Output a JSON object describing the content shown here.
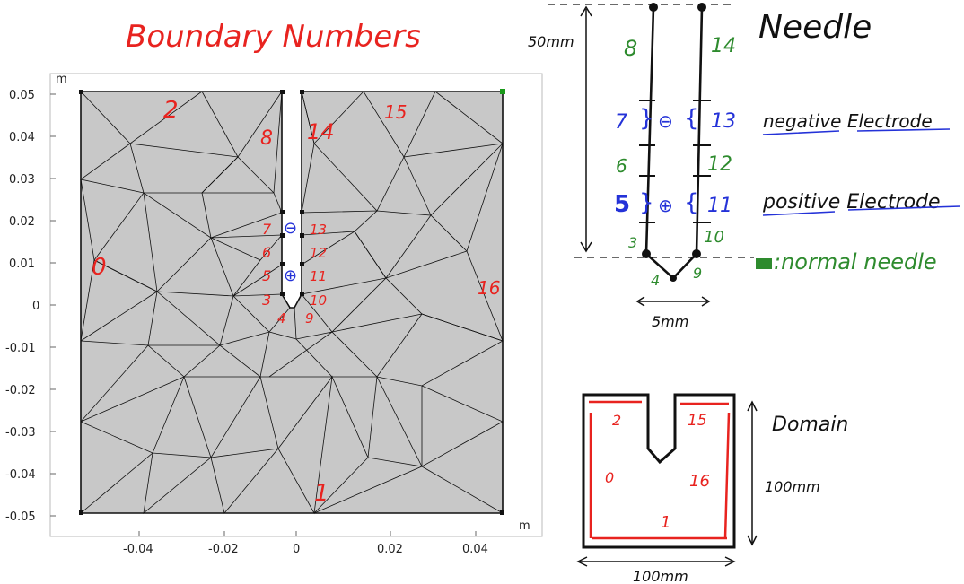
{
  "title": "Boundary Numbers",
  "plot": {
    "unit_x": "m",
    "unit_y": "m",
    "y_ticks": [
      "0.05",
      "0.04",
      "0.03",
      "0.02",
      "0.01",
      "0",
      "-0.01",
      "-0.02",
      "-0.03",
      "-0.04",
      "-0.05"
    ],
    "x_ticks": [
      "-0.04",
      "-0.02",
      "0",
      "0.02",
      "0.04"
    ],
    "boundary_labels": [
      "2",
      "8",
      "14",
      "15",
      "0",
      "16",
      "1",
      "7",
      "6",
      "5",
      "3",
      "4",
      "9",
      "10",
      "11",
      "12",
      "13"
    ],
    "electrode_marks": [
      "⊖",
      "⊕"
    ]
  },
  "needle": {
    "title": "Needle",
    "length_label": "50mm",
    "width_label": "5mm",
    "labels_left": [
      "8",
      "7",
      "6",
      "5",
      "3"
    ],
    "labels_right": [
      "14",
      "13",
      "12",
      "11",
      "10"
    ],
    "labels_bottom": [
      "4",
      "9"
    ],
    "negative_label": "negative Electrode",
    "positive_label": "positive Electrode",
    "normal_label": ":normal needle",
    "electrode_marks": [
      "⊖",
      "⊕"
    ]
  },
  "domain": {
    "title": "Domain",
    "height_label": "100mm",
    "width_label": "100mm",
    "labels": [
      "2",
      "15",
      "0",
      "16",
      "1"
    ]
  },
  "colors": {
    "annotation_red": "#e8231f",
    "annotation_blue": "#2432d8",
    "annotation_green": "#2e8b2e",
    "mesh_fill": "#c8c8c8"
  }
}
